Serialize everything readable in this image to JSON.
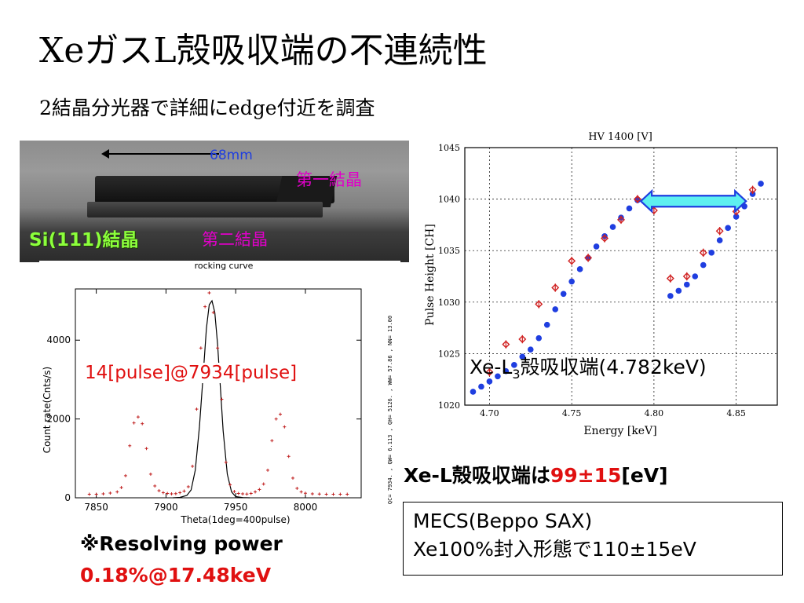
{
  "slide": {
    "title": "XeガスL殻吸収端の不連続性",
    "subtitle": "2結晶分光器で詳細にedge付近を調査",
    "photo": {
      "scale_label": "68mm",
      "crystal1_label": "第一結晶",
      "crystal2_label": "第二結晶",
      "si_label": "Si(111)結晶"
    },
    "rocking_annotation": "14[pulse]@7934[pulse]",
    "edge_label_prefix": "Xe-L",
    "edge_label_sub": "3",
    "edge_label_suffix": "殻吸収端(4.782keV)",
    "result_prefix": "Xe-L殻吸収端は",
    "result_value": "99±15",
    "result_unit": "[eV]",
    "mecs_line1": "MECS(Beppo SAX)",
    "mecs_line2": "Xe100%封入形態で110±15eV",
    "resolving_line1": "※Resolving power",
    "resolving_line2": "0.18%@17.48keV",
    "colors": {
      "accent_red": "#e01010",
      "magenta": "#e000c8",
      "green": "#8cff3c",
      "blue_points": "#1f3ee0",
      "arrow_fill": "#5ef0f0"
    }
  },
  "chart_data": [
    {
      "type": "scatter",
      "title": "rocking curve",
      "xlabel": "Theta(1deg=400pulse)",
      "ylabel": "Count rate(Cnts/s)",
      "xlim": [
        7835,
        8040
      ],
      "ylim": [
        0,
        5300
      ],
      "xticks": [
        7850,
        7900,
        7950,
        8000
      ],
      "xtick_labels": [
        "7850",
        "7900",
        "7950",
        "8000"
      ],
      "yticks": [
        0,
        2000,
        4000
      ],
      "ytick_labels": [
        "0",
        "2000",
        "4000"
      ],
      "side_text": "QC= 7934.  , QW= 6.113  , QH= 5126.  , WW= 57.86  , NN= 13.00",
      "series": [
        {
          "role": "data",
          "x": [
            7845,
            7850,
            7855,
            7860,
            7865,
            7868,
            7871,
            7874,
            7877,
            7880,
            7883,
            7886,
            7889,
            7892,
            7895,
            7898,
            7901,
            7904,
            7907,
            7910,
            7913,
            7916,
            7919,
            7922,
            7925,
            7928,
            7931,
            7934,
            7937,
            7940,
            7943,
            7946,
            7949,
            7952,
            7955,
            7958,
            7961,
            7964,
            7967,
            7970,
            7973,
            7976,
            7979,
            7982,
            7985,
            7988,
            7991,
            7994,
            7997,
            8000,
            8005,
            8010,
            8015,
            8020,
            8025,
            8030
          ],
          "y": [
            90,
            90,
            100,
            120,
            150,
            260,
            560,
            1320,
            1900,
            2050,
            1880,
            1250,
            600,
            300,
            180,
            130,
            110,
            100,
            105,
            130,
            170,
            280,
            800,
            2250,
            3800,
            4850,
            5200,
            4700,
            3800,
            2500,
            900,
            330,
            160,
            110,
            100,
            95,
            110,
            150,
            210,
            350,
            700,
            1450,
            2000,
            2120,
            1800,
            1050,
            500,
            240,
            150,
            115,
            100,
            95,
            90,
            90,
            90,
            90
          ]
        },
        {
          "role": "fit",
          "x": [
            7905,
            7910,
            7915,
            7918,
            7921,
            7924,
            7927,
            7929,
            7931,
            7933,
            7935,
            7937,
            7939,
            7941,
            7944,
            7947,
            7950,
            7955,
            7960
          ],
          "y": [
            0,
            10,
            60,
            200,
            700,
            1800,
            3300,
            4300,
            4900,
            5000,
            4700,
            3900,
            2800,
            1700,
            600,
            150,
            30,
            5,
            0
          ]
        }
      ]
    },
    {
      "type": "scatter",
      "title": "HV 1400 [V]",
      "xlabel": "Energy [keV]",
      "ylabel": "Pulse Height [CH]",
      "xlim": [
        4.685,
        4.875
      ],
      "ylim": [
        1020,
        1045
      ],
      "xticks": [
        4.7,
        4.75,
        4.8,
        4.85
      ],
      "xtick_labels": [
        "4.70",
        "4.75",
        "4.80",
        "4.85"
      ],
      "yticks": [
        1020,
        1025,
        1030,
        1035,
        1040,
        1045
      ],
      "ytick_labels": [
        "1020",
        "1025",
        "1030",
        "1035",
        "1040",
        "1045"
      ],
      "series": [
        {
          "role": "model",
          "x": [
            4.69,
            4.695,
            4.7,
            4.705,
            4.71,
            4.715,
            4.72,
            4.725,
            4.73,
            4.735,
            4.74,
            4.745,
            4.75,
            4.755,
            4.76,
            4.765,
            4.77,
            4.775,
            4.78,
            4.785,
            4.79,
            4.81,
            4.815,
            4.82,
            4.825,
            4.83,
            4.835,
            4.84,
            4.845,
            4.85,
            4.855,
            4.86,
            4.865
          ],
          "y": [
            1021.3,
            1021.8,
            1022.3,
            1022.8,
            1023.3,
            1023.9,
            1024.7,
            1025.4,
            1026.5,
            1027.8,
            1029.3,
            1030.8,
            1032.0,
            1033.2,
            1034.3,
            1035.4,
            1036.4,
            1037.3,
            1038.2,
            1039.1,
            1039.9,
            1030.6,
            1031.1,
            1031.7,
            1032.5,
            1033.6,
            1034.8,
            1036.0,
            1037.2,
            1038.3,
            1039.3,
            1040.5,
            1041.5
          ]
        },
        {
          "role": "measured",
          "x": [
            4.7,
            4.71,
            4.72,
            4.73,
            4.74,
            4.75,
            4.76,
            4.77,
            4.78,
            4.79,
            4.8,
            4.81,
            4.82,
            4.83,
            4.84,
            4.85,
            4.86
          ],
          "y": [
            1023.2,
            1025.9,
            1026.4,
            1029.8,
            1031.4,
            1034.0,
            1034.3,
            1036.2,
            1038.0,
            1040.0,
            1038.9,
            1032.3,
            1032.5,
            1034.8,
            1036.9,
            1038.8,
            1040.9
          ],
          "err": [
            0.4,
            0.4,
            0.4,
            0.4,
            0.4,
            0.4,
            0.4,
            0.4,
            0.4,
            0.4,
            0.4,
            0.4,
            0.4,
            0.4,
            0.4,
            0.4,
            0.4
          ]
        }
      ],
      "double_arrow": {
        "x1": 4.792,
        "x2": 4.856,
        "y": 1039.8
      }
    }
  ]
}
